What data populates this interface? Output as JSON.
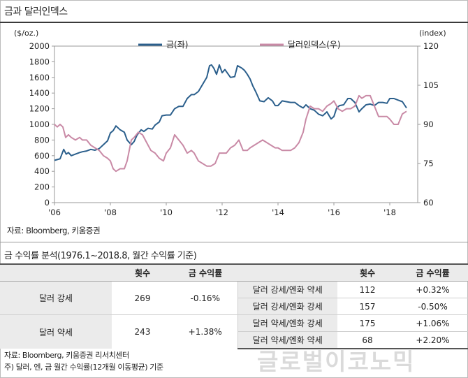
{
  "title": "금과 달러인덱스",
  "chart_data": {
    "type": "line",
    "title": "",
    "left_unit": "($/oz.)",
    "right_unit": "(index)",
    "x_ticks": [
      "'06",
      "'08",
      "'10",
      "'12",
      "'14",
      "'16",
      "'18"
    ],
    "y_left_ticks": [
      "0",
      "200",
      "400",
      "600",
      "800",
      "1000",
      "1200",
      "1400",
      "1600",
      "1800",
      "2000"
    ],
    "y_right_ticks": [
      "60",
      "75",
      "90",
      "105",
      "120"
    ],
    "ylim_left": [
      0,
      2000
    ],
    "ylim_right": [
      60,
      120
    ],
    "xlim": [
      2006.0,
      2019.0
    ],
    "legend_position": "top",
    "grid": false,
    "series": [
      {
        "name": "금(좌)",
        "axis": "left",
        "color": "#2b5f8c",
        "x": [
          2006.0,
          2006.1,
          2006.2,
          2006.33,
          2006.42,
          2006.5,
          2006.6,
          2006.75,
          2006.9,
          2007.0,
          2007.15,
          2007.3,
          2007.45,
          2007.6,
          2007.75,
          2007.9,
          2008.0,
          2008.1,
          2008.2,
          2008.35,
          2008.5,
          2008.6,
          2008.75,
          2008.85,
          2008.95,
          2009.1,
          2009.2,
          2009.35,
          2009.5,
          2009.6,
          2009.75,
          2009.85,
          2010.0,
          2010.15,
          2010.3,
          2010.45,
          2010.6,
          2010.75,
          2010.9,
          2011.0,
          2011.15,
          2011.3,
          2011.45,
          2011.55,
          2011.62,
          2011.7,
          2011.8,
          2011.9,
          2012.0,
          2012.1,
          2012.2,
          2012.3,
          2012.45,
          2012.55,
          2012.7,
          2012.8,
          2012.9,
          2013.0,
          2013.1,
          2013.2,
          2013.35,
          2013.5,
          2013.65,
          2013.8,
          2013.9,
          2014.0,
          2014.15,
          2014.3,
          2014.45,
          2014.6,
          2014.75,
          2014.9,
          2015.0,
          2015.15,
          2015.3,
          2015.45,
          2015.6,
          2015.75,
          2015.9,
          2016.0,
          2016.1,
          2016.2,
          2016.35,
          2016.5,
          2016.6,
          2016.75,
          2016.9,
          2017.0,
          2017.15,
          2017.3,
          2017.45,
          2017.6,
          2017.75,
          2017.9,
          2018.0,
          2018.15,
          2018.3,
          2018.45,
          2018.6
        ],
        "y": [
          540,
          550,
          560,
          680,
          620,
          640,
          600,
          620,
          640,
          650,
          660,
          680,
          670,
          690,
          740,
          790,
          890,
          920,
          980,
          930,
          900,
          800,
          740,
          780,
          860,
          930,
          910,
          950,
          940,
          990,
          1030,
          1110,
          1120,
          1120,
          1200,
          1230,
          1230,
          1330,
          1380,
          1380,
          1420,
          1510,
          1600,
          1750,
          1760,
          1720,
          1640,
          1760,
          1660,
          1700,
          1650,
          1600,
          1610,
          1750,
          1720,
          1690,
          1640,
          1580,
          1490,
          1420,
          1300,
          1290,
          1340,
          1300,
          1240,
          1240,
          1300,
          1290,
          1280,
          1280,
          1240,
          1210,
          1250,
          1200,
          1180,
          1130,
          1110,
          1160,
          1070,
          1100,
          1210,
          1240,
          1250,
          1330,
          1330,
          1280,
          1160,
          1200,
          1250,
          1260,
          1240,
          1280,
          1280,
          1270,
          1330,
          1330,
          1310,
          1290,
          1210
        ]
      },
      {
        "name": "달러인덱스(우)",
        "axis": "right",
        "color": "#c98aa6",
        "x": [
          2006.0,
          2006.1,
          2006.2,
          2006.3,
          2006.4,
          2006.5,
          2006.6,
          2006.75,
          2006.9,
          2007.0,
          2007.15,
          2007.3,
          2007.45,
          2007.6,
          2007.75,
          2007.9,
          2008.0,
          2008.1,
          2008.2,
          2008.35,
          2008.5,
          2008.6,
          2008.75,
          2008.85,
          2009.0,
          2009.15,
          2009.3,
          2009.45,
          2009.6,
          2009.75,
          2009.9,
          2010.0,
          2010.15,
          2010.3,
          2010.45,
          2010.6,
          2010.75,
          2010.9,
          2011.0,
          2011.15,
          2011.3,
          2011.45,
          2011.6,
          2011.75,
          2011.9,
          2012.0,
          2012.15,
          2012.3,
          2012.45,
          2012.6,
          2012.75,
          2012.9,
          2013.0,
          2013.15,
          2013.3,
          2013.45,
          2013.6,
          2013.75,
          2013.9,
          2014.0,
          2014.15,
          2014.3,
          2014.45,
          2014.6,
          2014.75,
          2014.9,
          2015.0,
          2015.15,
          2015.3,
          2015.45,
          2015.6,
          2015.75,
          2015.9,
          2016.0,
          2016.15,
          2016.3,
          2016.45,
          2016.6,
          2016.75,
          2016.9,
          2017.0,
          2017.15,
          2017.3,
          2017.45,
          2017.6,
          2017.75,
          2017.9,
          2018.0,
          2018.15,
          2018.3,
          2018.45,
          2018.6
        ],
        "y": [
          90,
          89,
          90,
          89,
          85,
          86,
          85,
          84,
          85,
          84,
          84,
          82,
          81,
          80,
          78,
          77,
          76,
          73,
          72,
          73,
          73,
          76,
          84,
          85,
          87,
          86,
          83,
          80,
          79,
          77,
          76,
          79,
          81,
          86,
          84,
          82,
          79,
          80,
          79,
          76,
          75,
          74,
          74,
          75,
          79,
          79,
          79,
          81,
          82,
          84,
          80,
          80,
          81,
          82,
          83,
          84,
          83,
          82,
          81,
          81,
          80,
          80,
          80,
          81,
          83,
          87,
          92,
          97,
          96,
          96,
          95,
          97,
          98,
          99,
          96,
          95,
          96,
          96,
          97,
          101,
          100,
          101,
          101,
          97,
          93,
          93,
          93,
          92,
          90,
          90,
          94,
          95
        ]
      }
    ]
  },
  "source_chart": "자료: Bloomberg, 키움증권",
  "table": {
    "title": "금 수익률 분석(1976.1~2018.8, 월간 수익률 기준)",
    "headers": {
      "left_count": "횟수",
      "left_return": "금 수익률",
      "right_count": "횟수",
      "right_return": "금 수익률"
    },
    "rows": [
      {
        "group": "달러 강세",
        "count": "269",
        "return": "-0.16%",
        "subs": [
          {
            "label": "달러 강세/엔화 약세",
            "count": "112",
            "return": "+0.32%"
          },
          {
            "label": "달러 강세/엔화 강세",
            "count": "157",
            "return": "-0.50%"
          }
        ]
      },
      {
        "group": "달러 약세",
        "count": "243",
        "return": "+1.38%",
        "subs": [
          {
            "label": "달러 약세/엔화 강세",
            "count": "175",
            "return": "+1.06%"
          },
          {
            "label": "달러 약세/엔화 약세",
            "count": "68",
            "return": "+2.20%"
          }
        ]
      }
    ]
  },
  "source_table": "자료: Bloomberg, 키움증권 리서치센터",
  "note": "주) 달러, 엔, 금 월간 수익률(12개월 이동평균) 기준",
  "watermark": "글로벌이코노믹"
}
